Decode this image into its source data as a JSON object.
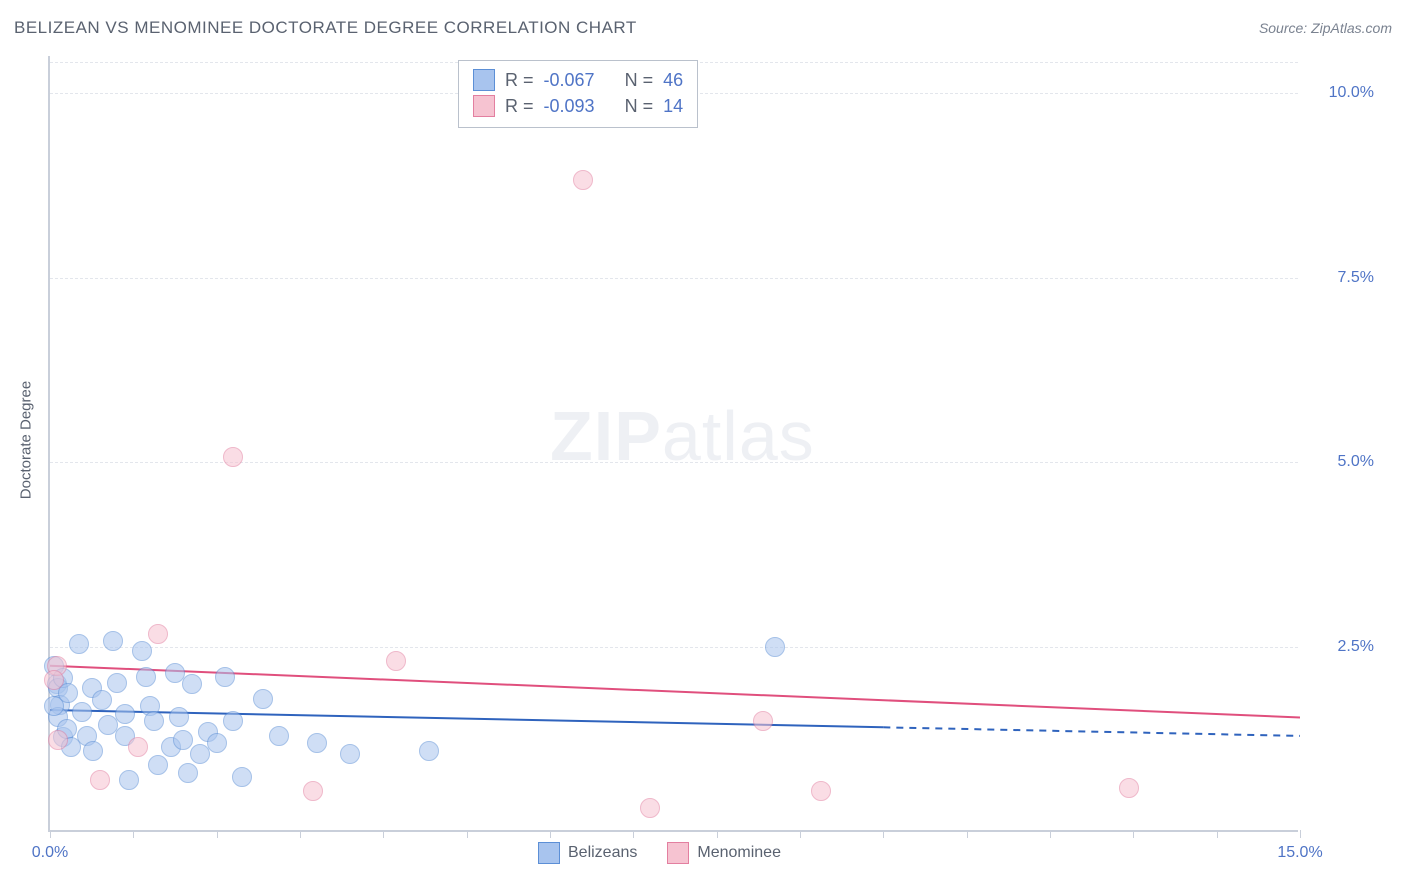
{
  "title": "BELIZEAN VS MENOMINEE DOCTORATE DEGREE CORRELATION CHART",
  "source_prefix": "Source: ",
  "source_name": "ZipAtlas.com",
  "ylabel": "Doctorate Degree",
  "watermark_bold": "ZIP",
  "watermark_rest": "atlas",
  "chart": {
    "type": "scatter",
    "background_color": "#ffffff",
    "grid_color": "#e3e6ec",
    "axis_color": "#c9cfda",
    "tick_label_color": "#4f74c6",
    "xlim": [
      0.0,
      15.0
    ],
    "ylim": [
      0.0,
      10.5
    ],
    "xticks": [
      0.0,
      1.0,
      2.0,
      3.0,
      4.0,
      5.0,
      6.0,
      7.0,
      8.0,
      9.0,
      10.0,
      11.0,
      12.0,
      13.0,
      14.0,
      15.0
    ],
    "xtick_labels": {
      "0.0": "0.0%",
      "15.0": "15.0%"
    },
    "yticks": [
      2.5,
      5.0,
      7.5,
      10.0
    ],
    "ytick_labels": [
      "2.5%",
      "5.0%",
      "7.5%",
      "10.0%"
    ],
    "marker_radius": 10,
    "marker_opacity": 0.55,
    "marker_stroke_opacity": 0.9,
    "trend_line_width": 2,
    "series": [
      {
        "name": "Belizeans",
        "color_fill": "#a8c4ee",
        "color_stroke": "#5c8fd6",
        "trend_color": "#2f63bd",
        "R": "-0.067",
        "N": "46",
        "trend": {
          "x1": 0.0,
          "y1": 1.65,
          "x2": 15.0,
          "y2": 1.3,
          "solid_until_x": 10.0
        },
        "points": [
          [
            0.05,
            2.25
          ],
          [
            0.08,
            2.0
          ],
          [
            0.1,
            1.95
          ],
          [
            0.12,
            1.72
          ],
          [
            0.1,
            1.55
          ],
          [
            0.15,
            1.28
          ],
          [
            0.05,
            1.7
          ],
          [
            0.15,
            2.08
          ],
          [
            0.22,
            1.88
          ],
          [
            0.2,
            1.4
          ],
          [
            0.25,
            1.15
          ],
          [
            0.35,
            2.55
          ],
          [
            0.38,
            1.62
          ],
          [
            0.5,
            1.95
          ],
          [
            0.44,
            1.3
          ],
          [
            0.52,
            1.1
          ],
          [
            0.62,
            1.78
          ],
          [
            0.7,
            1.45
          ],
          [
            0.75,
            2.58
          ],
          [
            0.8,
            2.02
          ],
          [
            0.9,
            1.6
          ],
          [
            0.9,
            1.3
          ],
          [
            0.95,
            0.7
          ],
          [
            1.1,
            2.45
          ],
          [
            1.15,
            2.1
          ],
          [
            1.2,
            1.7
          ],
          [
            1.25,
            1.5
          ],
          [
            1.3,
            0.9
          ],
          [
            1.45,
            1.15
          ],
          [
            1.5,
            2.15
          ],
          [
            1.55,
            1.55
          ],
          [
            1.6,
            1.25
          ],
          [
            1.65,
            0.8
          ],
          [
            1.7,
            2.0
          ],
          [
            1.8,
            1.05
          ],
          [
            1.9,
            1.35
          ],
          [
            2.0,
            1.2
          ],
          [
            2.1,
            2.1
          ],
          [
            2.2,
            1.5
          ],
          [
            2.3,
            0.75
          ],
          [
            2.55,
            1.8
          ],
          [
            2.75,
            1.3
          ],
          [
            3.2,
            1.2
          ],
          [
            3.6,
            1.05
          ],
          [
            4.55,
            1.1
          ],
          [
            8.7,
            2.5
          ]
        ]
      },
      {
        "name": "Menominee",
        "color_fill": "#f6c3d1",
        "color_stroke": "#e37fa0",
        "trend_color": "#e04f7d",
        "R": "-0.093",
        "N": "14",
        "trend": {
          "x1": 0.0,
          "y1": 2.25,
          "x2": 15.0,
          "y2": 1.55,
          "solid_until_x": 15.0
        },
        "points": [
          [
            0.08,
            2.25
          ],
          [
            0.05,
            2.05
          ],
          [
            0.1,
            1.25
          ],
          [
            0.6,
            0.7
          ],
          [
            1.05,
            1.15
          ],
          [
            1.3,
            2.68
          ],
          [
            2.2,
            5.08
          ],
          [
            3.15,
            0.55
          ],
          [
            4.15,
            2.32
          ],
          [
            6.4,
            8.82
          ],
          [
            7.2,
            0.32
          ],
          [
            8.55,
            1.5
          ],
          [
            9.25,
            0.55
          ],
          [
            12.95,
            0.6
          ]
        ]
      }
    ]
  },
  "stat_labels": {
    "R": "R =",
    "N": "N ="
  },
  "legend": [
    {
      "label": "Belizeans",
      "fill": "#a8c4ee",
      "stroke": "#5c8fd6"
    },
    {
      "label": "Menominee",
      "fill": "#f6c3d1",
      "stroke": "#e37fa0"
    }
  ]
}
